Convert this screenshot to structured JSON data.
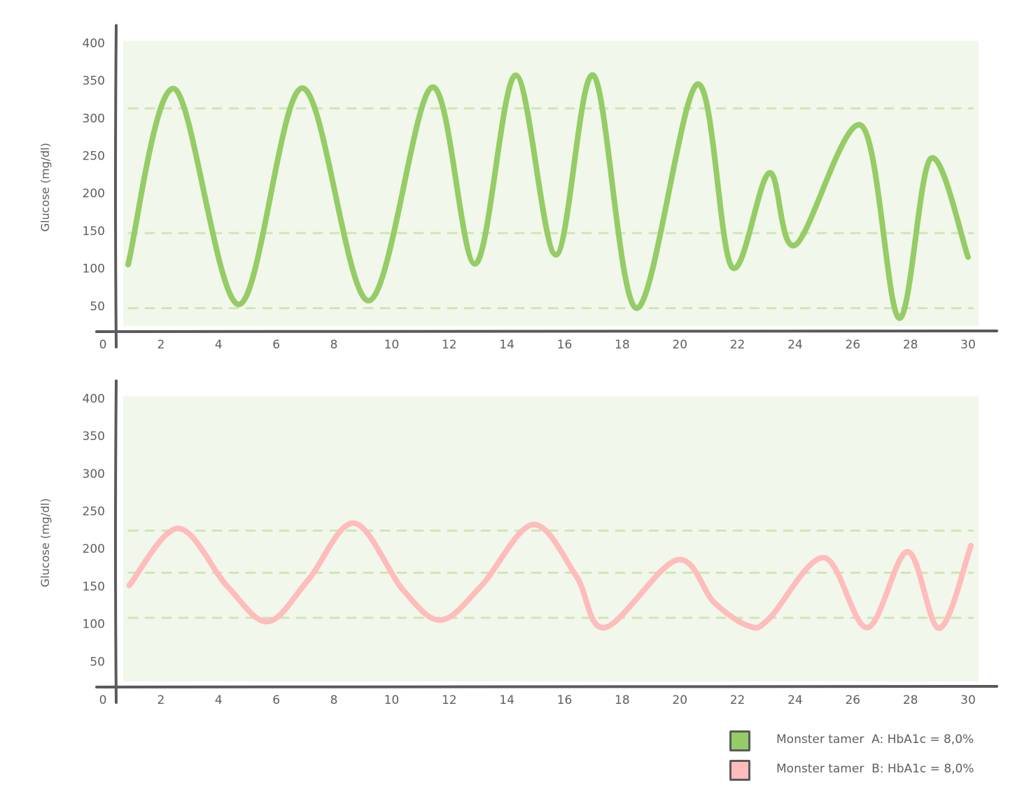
{
  "chart_data": [
    {
      "type": "line",
      "title": "",
      "xlabel": "",
      "ylabel": "Glucose (mg/dl)",
      "xlim": [
        0,
        30
      ],
      "ylim": [
        0,
        400
      ],
      "x_ticks": [
        "0",
        "2",
        "4",
        "6",
        "8",
        "10",
        "12",
        "14",
        "16",
        "18",
        "20",
        "22",
        "24",
        "26",
        "28",
        "30"
      ],
      "y_ticks": [
        "400",
        "350",
        "300",
        "250",
        "200",
        "150",
        "100",
        "50"
      ],
      "grid": false,
      "reference_lines": [
        313,
        147,
        47
      ],
      "background_band": {
        "color": "#f1f7ea"
      },
      "series": [
        {
          "name": "Monster tamer  A: HbA1c = 8,0%",
          "color": "#95cc66",
          "x": [
            0.86,
            2.46,
            4.7,
            6.9,
            9.2,
            11.4,
            12.9,
            14.3,
            15.7,
            17.0,
            18.5,
            20.6,
            21.8,
            23.1,
            24.0,
            26.3,
            27.6,
            28.7,
            30.0
          ],
          "values": [
            105,
            339,
            52,
            340,
            57,
            341,
            106,
            357,
            118,
            357,
            47,
            345,
            102,
            227,
            131,
            290,
            34,
            246,
            115
          ]
        }
      ]
    },
    {
      "type": "line",
      "title": "",
      "xlabel": "",
      "ylabel": "Glucose (mg/dl)",
      "xlim": [
        0,
        30
      ],
      "ylim": [
        0,
        400
      ],
      "x_ticks": [
        "0",
        "2",
        "4",
        "6",
        "8",
        "10",
        "12",
        "14",
        "16",
        "18",
        "20",
        "22",
        "24",
        "26",
        "28",
        "30"
      ],
      "y_ticks": [
        "400",
        "350",
        "300",
        "250",
        "200",
        "150",
        "100",
        "50"
      ],
      "grid": false,
      "reference_lines": [
        224,
        168,
        108
      ],
      "background_band": {
        "color": "#f1f7ea"
      },
      "series": [
        {
          "name": "Monster tamer  B: HbA1c = 8,0%",
          "color": "#ffbcbc",
          "x": [
            0.9,
            2.6,
            4.3,
            5.7,
            7.1,
            8.7,
            10.4,
            11.7,
            13.1,
            14.9,
            16.4,
            17.4,
            19.9,
            21.2,
            22.4,
            23.1,
            25.0,
            26.5,
            27.9,
            29.0,
            30.1
          ],
          "values": [
            151,
            227,
            150,
            103,
            158,
            234,
            145,
            105,
            150,
            232,
            164,
            95,
            185,
            128,
            97,
            107,
            188,
            95,
            196,
            94,
            204
          ]
        }
      ]
    }
  ],
  "charts": [
    {
      "ylabel": "Glucose (mg/dl)",
      "x_ticks": [
        "0",
        "2",
        "4",
        "6",
        "8",
        "10",
        "12",
        "14",
        "16",
        "18",
        "20",
        "22",
        "24",
        "26",
        "28",
        "30"
      ],
      "y_ticks": [
        "400",
        "350",
        "300",
        "250",
        "200",
        "150",
        "100",
        "50"
      ]
    },
    {
      "ylabel": "Glucose (mg/dl)",
      "x_ticks": [
        "0",
        "2",
        "4",
        "6",
        "8",
        "10",
        "12",
        "14",
        "16",
        "18",
        "20",
        "22",
        "24",
        "26",
        "28",
        "30"
      ],
      "y_ticks": [
        "400",
        "350",
        "300",
        "250",
        "200",
        "150",
        "100",
        "50"
      ]
    }
  ],
  "legend": {
    "items": [
      {
        "label": "Monster tamer  A: HbA1c = 8,0%",
        "color": "#95cc66",
        "icon": "square-swatch-icon"
      },
      {
        "label": "Monster tamer  B: HbA1c = 8,0%",
        "color": "#ffbcbc",
        "icon": "square-swatch-icon"
      }
    ]
  },
  "colors": {
    "axis": "#5a5a5a",
    "band": "#f1f7ea",
    "dash": "#cfe5b8",
    "series_a": "#95cc66",
    "series_b": "#ffbcbc"
  }
}
